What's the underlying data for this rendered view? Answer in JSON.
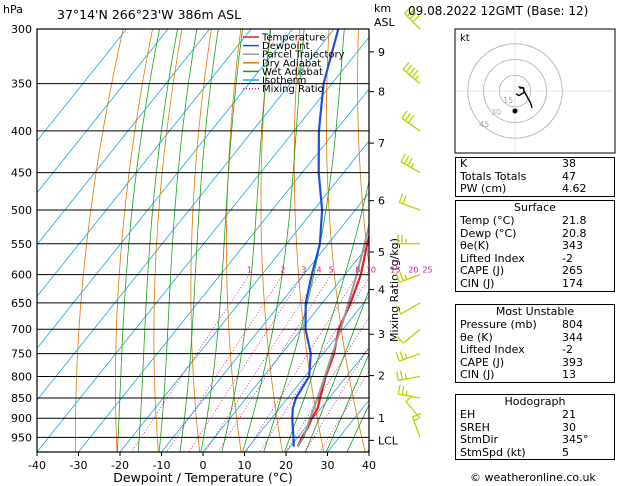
{
  "header": {
    "pressure_unit": "hPa",
    "location": "37°14'N  266°23'W  386m  ASL",
    "height_unit_km": "km",
    "height_unit_asl": "ASL",
    "datetime": "09.08.2022  12GMT  (Base: 12)"
  },
  "chart_data": {
    "type": "line",
    "title": "",
    "xlabel": "Dewpoint / Temperature (°C)",
    "ylabel": "hPa",
    "right_label": "Mixing Ratio (g/kg)",
    "x_ticks": [
      "-40",
      "-30",
      "-20",
      "-10",
      "0",
      "10",
      "20",
      "30",
      "40"
    ],
    "xlim": [
      -40,
      40
    ],
    "pressure_levels": [
      "300",
      "350",
      "400",
      "450",
      "500",
      "550",
      "600",
      "650",
      "700",
      "750",
      "800",
      "850",
      "900",
      "950"
    ],
    "ylim": [
      300,
      990
    ],
    "km_ticks": [
      {
        "km": "9",
        "p": 320
      },
      {
        "km": "8",
        "p": 358
      },
      {
        "km": "7",
        "p": 414
      },
      {
        "km": "6",
        "p": 487
      },
      {
        "km": "5",
        "p": 563
      },
      {
        "km": "4",
        "p": 626
      },
      {
        "km": "3",
        "p": 710
      },
      {
        "km": "2",
        "p": 798
      },
      {
        "km": "1",
        "p": 900
      },
      {
        "km": "LCL",
        "p": 958
      }
    ],
    "mixing_ratio_labels": [
      "1",
      "2",
      "3",
      "4",
      "5",
      "8",
      "10",
      "15",
      "20",
      "25"
    ],
    "legend": [
      "Temperature",
      "Dewpoint",
      "Parcel Trajectory",
      "Dry Adiabat",
      "Wet Adiabat",
      "Isotherm",
      "Mixing Ratio"
    ],
    "colors": {
      "temperature": "#e62020",
      "dewpoint": "#1f4fd8",
      "parcel": "#9a9a9a",
      "dry_adiabat": "#e07a00",
      "wet_adiabat": "#19a019",
      "isotherm": "#19a8e0",
      "mixing_ratio": "#d4148c",
      "wind": "#b8d400"
    },
    "series": [
      {
        "name": "Temperature",
        "points": [
          [
            975,
            21.8
          ],
          [
            950,
            21.0
          ],
          [
            925,
            20.6
          ],
          [
            900,
            19.7
          ],
          [
            875,
            19.2
          ],
          [
            850,
            17.8
          ],
          [
            800,
            15.0
          ],
          [
            750,
            12.6
          ],
          [
            700,
            9.0
          ],
          [
            650,
            6.8
          ],
          [
            600,
            3.8
          ],
          [
            550,
            -0.6
          ],
          [
            500,
            -5.0
          ],
          [
            470,
            -8.4
          ],
          [
            450,
            -11.0
          ],
          [
            440,
            -11.8
          ],
          [
            420,
            -13.5
          ],
          [
            400,
            -17.0
          ],
          [
            350,
            -25.0
          ],
          [
            300,
            -33.0
          ]
        ]
      },
      {
        "name": "Dewpoint",
        "points": [
          [
            975,
            20.8
          ],
          [
            950,
            19.0
          ],
          [
            925,
            17.0
          ],
          [
            900,
            15.0
          ],
          [
            875,
            13.2
          ],
          [
            850,
            12.0
          ],
          [
            800,
            11.0
          ],
          [
            750,
            7.0
          ],
          [
            700,
            1.0
          ],
          [
            650,
            -4.0
          ],
          [
            600,
            -8.0
          ],
          [
            550,
            -12.0
          ],
          [
            500,
            -18.0
          ],
          [
            450,
            -26.0
          ],
          [
            400,
            -34.0
          ],
          [
            350,
            -42.0
          ],
          [
            300,
            -49.0
          ]
        ]
      },
      {
        "name": "Parcel Trajectory",
        "points": [
          [
            975,
            21.8
          ],
          [
            950,
            21.4
          ],
          [
            925,
            20.4
          ],
          [
            900,
            19.3
          ],
          [
            850,
            17.2
          ],
          [
            800,
            14.8
          ],
          [
            750,
            12.2
          ],
          [
            700,
            9.5
          ],
          [
            650,
            6.3
          ],
          [
            600,
            2.8
          ],
          [
            550,
            -1.2
          ],
          [
            500,
            -5.8
          ],
          [
            450,
            -11.0
          ],
          [
            400,
            -17.2
          ],
          [
            350,
            -24.6
          ],
          [
            300,
            -33.6
          ]
        ]
      }
    ],
    "hodograph": {
      "label": "kt",
      "ring_labels": [
        "15",
        "30",
        "45"
      ]
    },
    "winds": [
      {
        "p": 300,
        "dir": 315,
        "spd": 40
      },
      {
        "p": 350,
        "dir": 310,
        "spd": 35
      },
      {
        "p": 400,
        "dir": 305,
        "spd": 30
      },
      {
        "p": 450,
        "dir": 300,
        "spd": 25
      },
      {
        "p": 500,
        "dir": 290,
        "spd": 20
      },
      {
        "p": 550,
        "dir": 270,
        "spd": 15
      },
      {
        "p": 600,
        "dir": 250,
        "spd": 15
      },
      {
        "p": 650,
        "dir": 240,
        "spd": 10
      },
      {
        "p": 700,
        "dir": 230,
        "spd": 10
      },
      {
        "p": 750,
        "dir": 250,
        "spd": 15
      },
      {
        "p": 800,
        "dir": 260,
        "spd": 15
      },
      {
        "p": 850,
        "dir": 280,
        "spd": 15
      },
      {
        "p": 900,
        "dir": 320,
        "spd": 10
      },
      {
        "p": 950,
        "dir": 340,
        "spd": 5
      }
    ]
  },
  "indices": {
    "k_label": "K",
    "k": "38",
    "tt_label": "Totals Totals",
    "tt": "47",
    "pw_label": "PW (cm)",
    "pw": "4.62",
    "surface_title": "Surface",
    "s_temp_label": "Temp (°C)",
    "s_temp": "21.8",
    "s_dewp_label": "Dewp (°C)",
    "s_dewp": "20.8",
    "s_theta_label": "θe(K)",
    "s_theta": "343",
    "s_li_label": "Lifted Index",
    "s_li": "-2",
    "s_cape_label": "CAPE (J)",
    "s_cape": "265",
    "s_cin_label": "CIN (J)",
    "s_cin": "174",
    "mu_title": "Most Unstable",
    "mu_p_label": "Pressure (mb)",
    "mu_p": "804",
    "mu_theta_label": "θe (K)",
    "mu_theta": "344",
    "mu_li_label": "Lifted Index",
    "mu_li": "-2",
    "mu_cape_label": "CAPE (J)",
    "mu_cape": "393",
    "mu_cin_label": "CIN (J)",
    "mu_cin": "13",
    "hodo_title": "Hodograph",
    "eh_label": "EH",
    "eh": "21",
    "sreh_label": "SREH",
    "sreh": "30",
    "stmdir_label": "StmDir",
    "stmdir": "345°",
    "stmspd_label": "StmSpd (kt)",
    "stmspd": "5"
  },
  "credit": "© weatheronline.co.uk"
}
